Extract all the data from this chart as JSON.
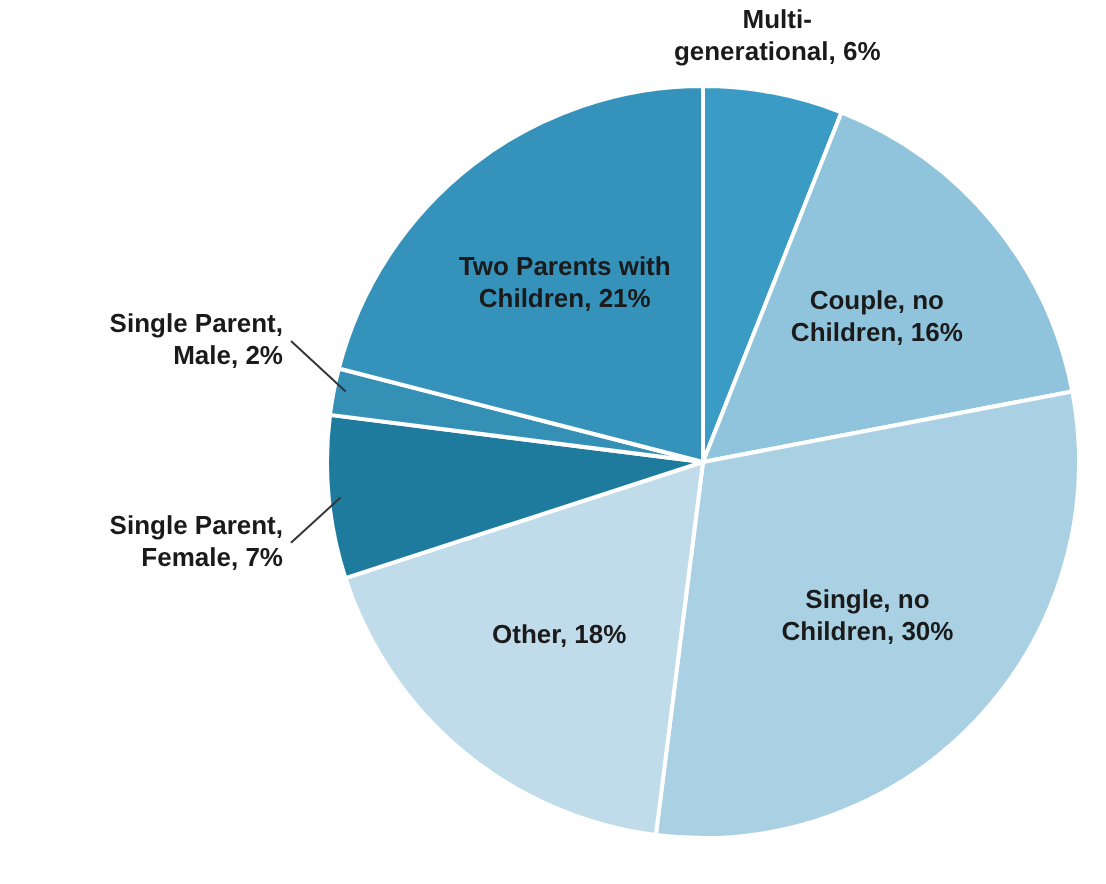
{
  "chart_data": {
    "type": "pie",
    "categories": [
      "Multi-generational",
      "Couple, no Children",
      "Single, no Children",
      "Other",
      "Single Parent, Female",
      "Single Parent, Male",
      "Two Parents with Children"
    ],
    "values": [
      6,
      16,
      30,
      18,
      7,
      2,
      21
    ],
    "colors": [
      "#3a9cc4",
      "#8fc4dc",
      "#a9d0e3",
      "#c0dcea",
      "#1f7b9e",
      "#3590b6",
      "#3592ba"
    ],
    "value_labels": [
      "6%",
      "16%",
      "30%",
      "18%",
      "7%",
      "2%",
      "21%"
    ],
    "legend": false
  }
}
